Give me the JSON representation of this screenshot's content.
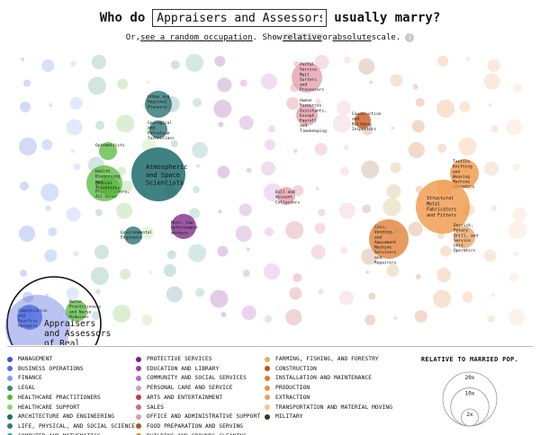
{
  "title": {
    "prefix": "Who do",
    "suffix": "usually marry?",
    "occupation_value": "Appraisers and Assessors of Real Estate"
  },
  "subtitle": {
    "or_text": "Or,",
    "random_link": "see a random occupation",
    "show_text": ". Show",
    "relative_label": "relative",
    "or2_text": "or",
    "absolute_label": "absolute",
    "scale_text": "scale."
  },
  "selected_occupation_label": "Appraisers and Assessors of Real Estate",
  "legend": {
    "items": [
      {
        "label": "MANAGEMENT",
        "color": "#3b56d6"
      },
      {
        "label": "BUSINESS OPERATIONS",
        "color": "#4b73e8"
      },
      {
        "label": "FINANCE",
        "color": "#7f9cf2"
      },
      {
        "label": "LEGAL",
        "color": "#2f8a78"
      },
      {
        "label": "HEALTHCARE PRACTITIONERS",
        "color": "#57b83a"
      },
      {
        "label": "HEALTHCARE SUPPORT",
        "color": "#8fd46a"
      },
      {
        "label": "ARCHITECTURE AND ENGINEERING",
        "color": "#1f6b6b"
      },
      {
        "label": "LIFE, PHYSICAL, AND SOCIAL SCIENCE",
        "color": "#2c7d80"
      },
      {
        "label": "COMPUTER AND MATHEMATICS",
        "color": "#3a9a8c"
      },
      {
        "label": "PROTECTIVE SERVICES",
        "color": "#7a1f82"
      },
      {
        "label": "EDUCATION AND LIBRARY",
        "color": "#9b3fa3"
      },
      {
        "label": "COMMUNITY AND SOCIAL SERVICES",
        "color": "#b46bbc"
      },
      {
        "label": "PERSONAL CARE AND SERVICE",
        "color": "#d19ad6"
      },
      {
        "label": "ARTS AND ENTERTAINMENT",
        "color": "#c0394f"
      },
      {
        "label": "SALES",
        "color": "#d66a7d"
      },
      {
        "label": "OFFICE AND ADMINISTRATIVE SUPPORT",
        "color": "#e39aa8"
      },
      {
        "label": "FOOD PREPARATION AND SERVING",
        "color": "#a05a2c"
      },
      {
        "label": "BUILDING AND GROUNDS CLEANING",
        "color": "#b8912e"
      },
      {
        "label": "FARMING, FISHING, AND FORESTRY",
        "color": "#d8b65a"
      },
      {
        "label": "CONSTRUCTION",
        "color": "#c8500e"
      },
      {
        "label": "INSTALLATION AND MAINTENANCE",
        "color": "#e07a2b"
      },
      {
        "label": "PRODUCTION",
        "color": "#f0903c"
      },
      {
        "label": "EXTRACTION",
        "color": "#e8a060"
      },
      {
        "label": "TRANSPORTATION AND MATERIAL MOVING",
        "color": "#f3c39b"
      },
      {
        "label": "MILITARY",
        "color": "#2e3b1e"
      }
    ]
  },
  "scale_key": {
    "title": "RELATIVE TO MARRIED POP.",
    "levels": [
      {
        "label": "20x",
        "value": 20
      },
      {
        "label": "10x",
        "value": 10
      },
      {
        "label": "2x",
        "value": 2
      }
    ]
  },
  "labeled_bubbles": [
    {
      "label": "Atmospheric and Space Scientists",
      "color": "#1f6b6b"
    },
    {
      "label": "Urban and Regional Planners",
      "color": "#1f6b6b"
    },
    {
      "label": "Geological and Petroleum Technicians",
      "color": "#1f6b6b"
    },
    {
      "label": "Environmental Engineers",
      "color": "#1f6b6b"
    },
    {
      "label": "Optometrists",
      "color": "#57b83a"
    },
    {
      "label": "Health Diagnosing and Treating Practitioners, All Other",
      "color": "#57b83a"
    },
    {
      "label": "Medical Scientists",
      "color": "#57b83a"
    },
    {
      "label": "Misc. law enforcement workers",
      "color": "#7a1f82"
    },
    {
      "label": "Postal Service Mail Sorters and Processors",
      "color": "#e39aa8"
    },
    {
      "label": "Human Resources Assistants, Except Payroll and Timekeeping",
      "color": "#e39aa8"
    },
    {
      "label": "Bill and Account Collectors",
      "color": "#e39aa8"
    },
    {
      "label": "Construction and Building Inspectors",
      "color": "#c8500e"
    },
    {
      "label": "Textile Knitting and Weaving Machine Operators",
      "color": "#f0903c"
    },
    {
      "label": "Structural Metal Fabricators and Fitters",
      "color": "#f0903c"
    },
    {
      "label": "Coin, Vending, and Amusement Machine Servicers and Repairers",
      "color": "#e07a2b"
    },
    {
      "label": "Derrick, Rotary Drill, and Service Unit Operators",
      "color": "#e8a060"
    },
    {
      "label": "Compensation and Benefits Managers",
      "color": "#4b73e8"
    },
    {
      "label": "Nurse Practitioners and Nurse Midwives",
      "color": "#57b83a"
    }
  ]
}
